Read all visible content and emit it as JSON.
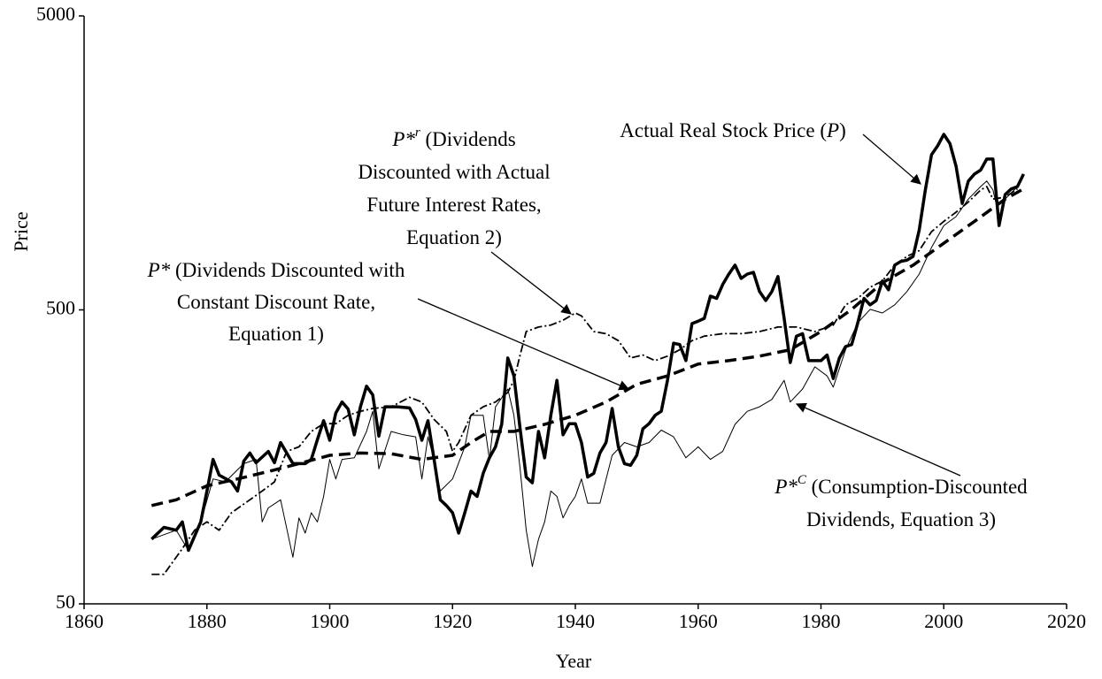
{
  "chart_data": {
    "type": "line",
    "xlabel": "Year",
    "ylabel": "Price",
    "xlim": [
      1860,
      2020
    ],
    "xticks": [
      1860,
      1880,
      1900,
      1920,
      1940,
      1960,
      1980,
      2000,
      2020
    ],
    "ylim": [
      50,
      5000
    ],
    "yticks": [
      50,
      500,
      5000
    ],
    "yscale": "log",
    "grid": false,
    "series": [
      {
        "color": "#000000",
        "line_style": "thick",
        "x": [
          1871,
          1873,
          1875,
          1876,
          1877,
          1879,
          1880,
          1881,
          1882,
          1884,
          1885,
          1886,
          1887,
          1888,
          1890,
          1891,
          1892,
          1893,
          1894,
          1896,
          1897,
          1898,
          1899,
          1900,
          1901,
          1902,
          1903,
          1904,
          1905,
          1906,
          1907,
          1908,
          1909,
          1911,
          1913,
          1914,
          1915,
          1916,
          1917,
          1918,
          1919,
          1920,
          1921,
          1922,
          1923,
          1924,
          1925,
          1926,
          1927,
          1928,
          1929,
          1930,
          1931,
          1932,
          1933,
          1934,
          1935,
          1936,
          1937,
          1938,
          1939,
          1940,
          1941,
          1942,
          1943,
          1944,
          1945,
          1946,
          1947,
          1948,
          1949,
          1950,
          1951,
          1952,
          1953,
          1954,
          1955,
          1956,
          1957,
          1958,
          1959,
          1960,
          1961,
          1962,
          1963,
          1964,
          1965,
          1966,
          1967,
          1968,
          1969,
          1970,
          1971,
          1972,
          1973,
          1974,
          1975,
          1976,
          1977,
          1978,
          1980,
          1981,
          1982,
          1983,
          1984,
          1985,
          1986,
          1987,
          1988,
          1989,
          1990,
          1991,
          1992,
          1993,
          1994,
          1995,
          1996,
          1997,
          1998,
          1999,
          2000,
          2001,
          2002,
          2003,
          2004,
          2005,
          2006,
          2007,
          2008,
          2009,
          2010,
          2011,
          2012,
          2013
        ],
        "values": [
          83,
          91,
          89,
          95,
          76,
          95,
          121,
          155,
          137,
          130,
          121,
          153,
          163,
          151,
          165,
          151,
          177,
          163,
          150,
          150,
          155,
          181,
          210,
          180,
          223,
          243,
          230,
          188,
          234,
          275,
          257,
          186,
          234,
          234,
          232,
          212,
          180,
          210,
          155,
          113,
          108,
          102,
          87,
          102,
          121,
          116,
          139,
          157,
          171,
          204,
          343,
          298,
          197,
          135,
          129,
          193,
          157,
          219,
          288,
          188,
          205,
          205,
          177,
          135,
          139,
          163,
          177,
          231,
          171,
          150,
          148,
          160,
          197,
          205,
          219,
          226,
          288,
          385,
          381,
          336,
          449,
          458,
          468,
          557,
          547,
          610,
          662,
          710,
          640,
          662,
          671,
          577,
          538,
          577,
          649,
          468,
          331,
          407,
          415,
          336,
          336,
          351,
          292,
          343,
          375,
          381,
          452,
          547,
          520,
          538,
          627,
          585,
          710,
          731,
          738,
          760,
          935,
          1279,
          1686,
          1807,
          1977,
          1840,
          1542,
          1151,
          1371,
          1449,
          1494,
          1630,
          1630,
          968,
          1234,
          1290,
          1314,
          1449
        ]
      },
      {
        "color": "#000000",
        "line_style": "thin",
        "x": [
          1871,
          1875,
          1877,
          1879,
          1881,
          1883,
          1886,
          1888,
          1889,
          1890,
          1892,
          1894,
          1895,
          1896,
          1897,
          1898,
          1899,
          1900,
          1901,
          1902,
          1904,
          1906,
          1907,
          1908,
          1910,
          1912,
          1914,
          1915,
          1916,
          1917,
          1918,
          1920,
          1922,
          1923,
          1925,
          1926,
          1927,
          1929,
          1930,
          1931,
          1932,
          1933,
          1934,
          1935,
          1936,
          1937,
          1938,
          1939,
          1940,
          1941,
          1942,
          1944,
          1946,
          1948,
          1950,
          1952,
          1954,
          1956,
          1958,
          1960,
          1962,
          1964,
          1966,
          1968,
          1970,
          1972,
          1974,
          1975,
          1977,
          1979,
          1981,
          1982,
          1984,
          1986,
          1988,
          1990,
          1992,
          1994,
          1996,
          1998,
          2000,
          2002,
          2004,
          2006,
          2007,
          2008,
          2009,
          2010,
          2012
        ],
        "values": [
          83,
          89,
          76,
          95,
          133,
          130,
          150,
          155,
          95,
          106,
          113,
          72,
          98,
          87,
          102,
          95,
          116,
          155,
          133,
          155,
          157,
          193,
          226,
          144,
          193,
          188,
          185,
          133,
          185,
          155,
          121,
          133,
          171,
          219,
          219,
          155,
          234,
          269,
          219,
          144,
          89,
          67,
          83,
          95,
          121,
          116,
          98,
          108,
          116,
          133,
          110,
          110,
          160,
          177,
          171,
          177,
          195,
          185,
          157,
          171,
          155,
          165,
          204,
          226,
          234,
          248,
          288,
          243,
          269,
          320,
          298,
          273,
          366,
          452,
          502,
          488,
          520,
          577,
          662,
          815,
          968,
          1038,
          1191,
          1314,
          1371,
          1279,
          1038,
          1191,
          1314
        ]
      },
      {
        "color": "#000000",
        "line_style": "dash-dot",
        "x": [
          1871,
          1873,
          1876,
          1878,
          1880,
          1882,
          1884,
          1887,
          1889,
          1891,
          1893,
          1895,
          1897,
          1899,
          1901,
          1903,
          1905,
          1907,
          1910,
          1913,
          1915,
          1917,
          1919,
          1920,
          1921,
          1923,
          1925,
          1927,
          1929,
          1930,
          1931,
          1932,
          1934,
          1936,
          1938,
          1940,
          1941,
          1943,
          1945,
          1947,
          1949,
          1951,
          1953,
          1955,
          1957,
          1959,
          1961,
          1964,
          1967,
          1970,
          1973,
          1976,
          1979,
          1982,
          1984,
          1986,
          1988,
          1990,
          1992,
          1994,
          1996,
          1998,
          2000,
          2002,
          2004,
          2006,
          2007,
          2008,
          2010,
          2012
        ],
        "values": [
          63,
          63,
          77,
          89,
          95,
          89,
          102,
          113,
          121,
          130,
          165,
          171,
          193,
          205,
          205,
          219,
          226,
          231,
          234,
          252,
          243,
          212,
          193,
          165,
          177,
          219,
          234,
          243,
          262,
          288,
          351,
          422,
          437,
          444,
          461,
          488,
          477,
          422,
          415,
          393,
          343,
          351,
          336,
          348,
          366,
          393,
          407,
          415,
          415,
          422,
          437,
          437,
          422,
          444,
          520,
          547,
          597,
          627,
          710,
          760,
          796,
          923,
          1000,
          1075,
          1164,
          1279,
          1314,
          1191,
          1210,
          1290
        ]
      },
      {
        "color": "#000000",
        "line_style": "thick-dashed",
        "x": [
          1871,
          1875,
          1880,
          1885,
          1890,
          1895,
          1900,
          1905,
          1910,
          1915,
          1920,
          1923,
          1926,
          1930,
          1935,
          1940,
          1945,
          1950,
          1955,
          1960,
          1965,
          1970,
          1975,
          1980,
          1985,
          1990,
          1995,
          2000,
          2005,
          2010,
          2013
        ],
        "values": [
          108,
          113,
          126,
          133,
          141,
          150,
          160,
          163,
          162,
          155,
          160,
          177,
          193,
          193,
          204,
          219,
          243,
          279,
          298,
          327,
          336,
          348,
          366,
          422,
          502,
          618,
          710,
          843,
          1000,
          1191,
          1290
        ]
      }
    ],
    "annotations": [
      {
        "lines": [
          [
            {
              "text": "P*",
              "italic": true
            },
            {
              "text": "r",
              "italic": true,
              "sup": true
            },
            {
              "text": " (Dividends"
            }
          ],
          [
            {
              "text": "Discounted with Actual"
            }
          ],
          [
            {
              "text": "Future Interest Rates,"
            }
          ],
          [
            {
              "text": "Equation 2)"
            }
          ]
        ]
      },
      {
        "lines": [
          [
            {
              "text": "P*",
              "italic": true
            },
            {
              "text": " (Dividends Discounted with"
            }
          ],
          [
            {
              "text": "Constant Discount Rate,"
            }
          ],
          [
            {
              "text": "Equation 1)"
            }
          ]
        ]
      },
      {
        "lines": [
          [
            {
              "text": "Actual Real Stock Price ("
            },
            {
              "text": "P",
              "italic": true
            },
            {
              "text": ")"
            }
          ]
        ]
      },
      {
        "lines": [
          [
            {
              "text": "P*",
              "italic": true
            },
            {
              "text": "C",
              "italic": true,
              "sup": true
            },
            {
              "text": " (Consumption-Discounted"
            }
          ],
          [
            {
              "text": "Dividends, Equation 3)"
            }
          ]
        ]
      }
    ]
  }
}
